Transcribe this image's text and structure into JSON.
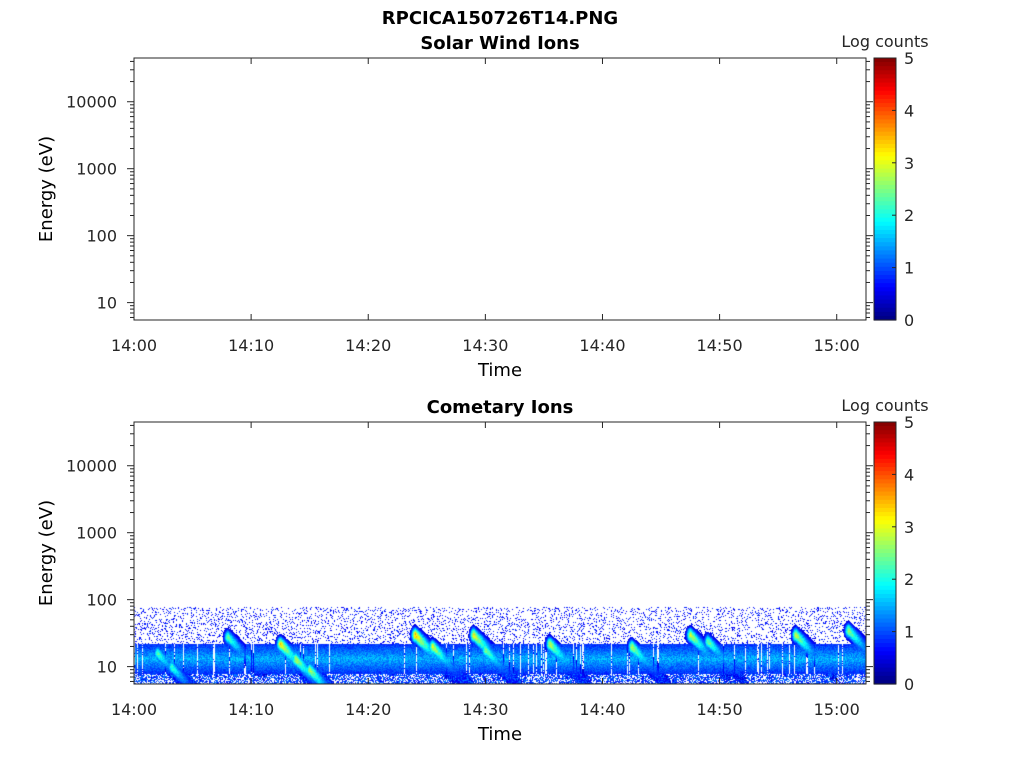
{
  "figure": {
    "title": "RPCICA150726T14.PNG"
  },
  "chart_data": [
    {
      "type": "heatmap",
      "title": "Solar Wind Ions",
      "xlabel": "Time",
      "ylabel": "Energy (eV)",
      "x_ticks": [
        "14:00",
        "14:10",
        "14:20",
        "14:30",
        "14:40",
        "14:50",
        "15:00"
      ],
      "x_range_minutes": [
        0,
        62.5
      ],
      "y_scale": "log",
      "y_ticks": [
        10,
        100,
        1000,
        10000
      ],
      "y_tick_labels": [
        "10",
        "100",
        "1000",
        "10000"
      ],
      "ylim": [
        5.5,
        45000
      ],
      "colorbar": {
        "label": "Log counts",
        "range": [
          0,
          5
        ],
        "ticks": [
          "0",
          "1",
          "2",
          "3",
          "4",
          "5"
        ],
        "colormap": "jet"
      },
      "data_present": false
    },
    {
      "type": "heatmap",
      "title": "Cometary Ions",
      "xlabel": "Time",
      "ylabel": "Energy (eV)",
      "x_ticks": [
        "14:00",
        "14:10",
        "14:20",
        "14:30",
        "14:40",
        "14:50",
        "15:00"
      ],
      "x_range_minutes": [
        0,
        62.5
      ],
      "y_scale": "log",
      "y_ticks": [
        10,
        100,
        1000,
        10000
      ],
      "y_tick_labels": [
        "10",
        "100",
        "1000",
        "10000"
      ],
      "ylim": [
        5.5,
        45000
      ],
      "colorbar": {
        "label": "Log counts",
        "range": [
          0,
          5
        ],
        "ticks": [
          "0",
          "1",
          "2",
          "3",
          "4",
          "5"
        ],
        "colormap": "jet"
      },
      "data_present": true,
      "energy_extent_eV": [
        5.5,
        80
      ],
      "noise_floor_log_counts": 0.5,
      "background_band": {
        "energy_eV": [
          8,
          22
        ],
        "log_counts": 1.6
      },
      "events": [
        {
          "time_min": 2.0,
          "peak_energy_eV": 16,
          "peak_log_counts": 2.4
        },
        {
          "time_min": 3.2,
          "peak_energy_eV": 10,
          "peak_log_counts": 2.3
        },
        {
          "time_min": 8.0,
          "peak_energy_eV": 28,
          "peak_log_counts": 2.5
        },
        {
          "time_min": 12.5,
          "peak_energy_eV": 22,
          "peak_log_counts": 3.4
        },
        {
          "time_min": 13.8,
          "peak_energy_eV": 13,
          "peak_log_counts": 3.0
        },
        {
          "time_min": 15.0,
          "peak_energy_eV": 9,
          "peak_log_counts": 2.9
        },
        {
          "time_min": 24.0,
          "peak_energy_eV": 30,
          "peak_log_counts": 3.6
        },
        {
          "time_min": 25.5,
          "peak_energy_eV": 20,
          "peak_log_counts": 3.1
        },
        {
          "time_min": 29.0,
          "peak_energy_eV": 30,
          "peak_log_counts": 3.3
        },
        {
          "time_min": 30.0,
          "peak_energy_eV": 18,
          "peak_log_counts": 2.7
        },
        {
          "time_min": 35.5,
          "peak_energy_eV": 22,
          "peak_log_counts": 3.0
        },
        {
          "time_min": 42.5,
          "peak_energy_eV": 20,
          "peak_log_counts": 2.9
        },
        {
          "time_min": 47.5,
          "peak_energy_eV": 30,
          "peak_log_counts": 3.1
        },
        {
          "time_min": 49.0,
          "peak_energy_eV": 24,
          "peak_log_counts": 2.6
        },
        {
          "time_min": 56.5,
          "peak_energy_eV": 30,
          "peak_log_counts": 3.0
        },
        {
          "time_min": 61.0,
          "peak_energy_eV": 35,
          "peak_log_counts": 2.8
        }
      ]
    }
  ]
}
